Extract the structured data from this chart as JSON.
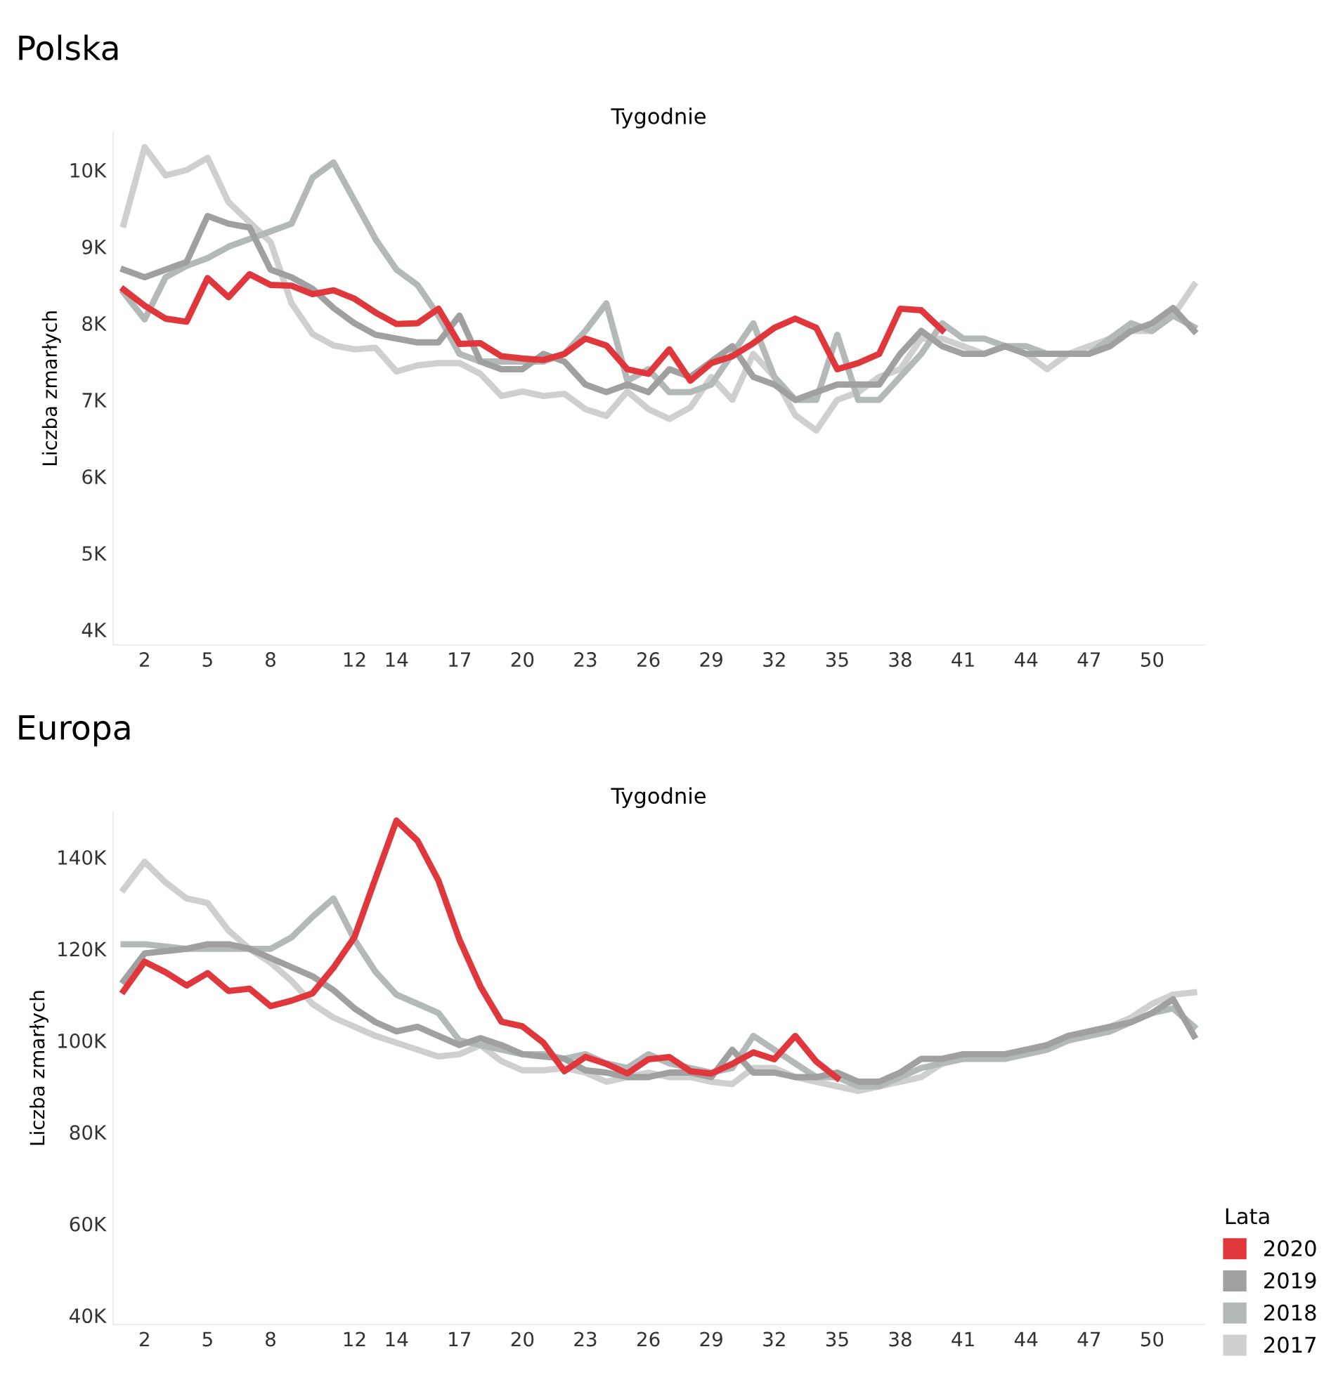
{
  "chart_data": [
    {
      "type": "line",
      "title": "Polska",
      "xlabel": "Tygodnie",
      "ylabel": "Liczba zmarłych",
      "x": [
        1,
        2,
        3,
        4,
        5,
        6,
        7,
        8,
        9,
        10,
        11,
        12,
        13,
        14,
        15,
        16,
        17,
        18,
        19,
        20,
        21,
        22,
        23,
        24,
        25,
        26,
        27,
        28,
        29,
        30,
        31,
        32,
        33,
        34,
        35,
        36,
        37,
        38,
        39,
        40,
        41,
        42,
        43,
        44,
        45,
        46,
        47,
        48,
        49,
        50,
        51,
        52
      ],
      "xlim": [
        0.5,
        52.5
      ],
      "xticks": [
        2,
        5,
        8,
        12,
        14,
        17,
        20,
        23,
        26,
        29,
        32,
        35,
        38,
        41,
        44,
        47,
        50
      ],
      "ylim": [
        3800,
        10500
      ],
      "yticks": [
        {
          "value": 4000,
          "label": "4K"
        },
        {
          "value": 5000,
          "label": "5K"
        },
        {
          "value": 6000,
          "label": "6K"
        },
        {
          "value": 7000,
          "label": "7K"
        },
        {
          "value": 8000,
          "label": "8K"
        },
        {
          "value": 9000,
          "label": "9K"
        },
        {
          "value": 10000,
          "label": "10K"
        }
      ],
      "grid": false,
      "legend": false,
      "series": [
        {
          "color": "#e0373c",
          "values": [
            8440,
            8230,
            8060,
            8020,
            8590,
            8340,
            8640,
            8500,
            8490,
            8380,
            8430,
            8320,
            8140,
            7990,
            8000,
            8190,
            7730,
            7740,
            7570,
            7540,
            7520,
            7600,
            7800,
            7710,
            7400,
            7340,
            7660,
            7250,
            7480,
            7570,
            7740,
            7940,
            8060,
            7940,
            7400,
            7480,
            7600,
            8190,
            8170,
            7910,
            null,
            null,
            null,
            null,
            null,
            null,
            null,
            null,
            null,
            null,
            null,
            null
          ]
        },
        {
          "color": "#a0a0a0",
          "values": [
            8700,
            8600,
            8700,
            8800,
            9400,
            9300,
            9250,
            8700,
            8600,
            8450,
            8200,
            8000,
            7850,
            7800,
            7750,
            7750,
            8100,
            7500,
            7400,
            7400,
            7600,
            7500,
            7200,
            7100,
            7200,
            7100,
            7400,
            7300,
            7500,
            7700,
            7300,
            7200,
            7000,
            7100,
            7200,
            7200,
            7200,
            7600,
            7900,
            7700,
            7600,
            7600,
            7700,
            7600,
            7600,
            7600,
            7600,
            7700,
            7900,
            8000,
            8200,
            7900
          ]
        },
        {
          "color": "#b3b9b8",
          "values": [
            8400,
            8050,
            8600,
            8750,
            8850,
            9000,
            9100,
            9200,
            9300,
            9900,
            10100,
            9600,
            9100,
            8700,
            8500,
            8100,
            7600,
            7500,
            7500,
            7500,
            7500,
            7600,
            7900,
            8260,
            7250,
            7400,
            7100,
            7100,
            7200,
            7600,
            8000,
            7300,
            7000,
            7000,
            7850,
            7000,
            7000,
            7300,
            7600,
            8000,
            7800,
            7800,
            7700,
            7700,
            7600,
            7600,
            7600,
            7800,
            8000,
            7900,
            8100,
            7950
          ]
        },
        {
          "color": "#cfcfcf",
          "values": [
            9290,
            10300,
            9930,
            10000,
            10160,
            9580,
            9320,
            9060,
            8260,
            7860,
            7710,
            7660,
            7680,
            7370,
            7450,
            7480,
            7480,
            7340,
            7050,
            7110,
            7050,
            7080,
            6880,
            6790,
            7110,
            6880,
            6750,
            6900,
            7300,
            7000,
            7600,
            7300,
            6800,
            6600,
            7000,
            7100,
            7300,
            7400,
            7800,
            7800,
            7700,
            7600,
            7700,
            7600,
            7400,
            7600,
            7700,
            7800,
            7900,
            7900,
            8100,
            8500
          ]
        }
      ]
    },
    {
      "type": "line",
      "title": "Europa",
      "xlabel": "Tygodnie",
      "ylabel": "Liczba zmarłych",
      "legend_title": "Lata",
      "x": [
        1,
        2,
        3,
        4,
        5,
        6,
        7,
        8,
        9,
        10,
        11,
        12,
        13,
        14,
        15,
        16,
        17,
        18,
        19,
        20,
        21,
        22,
        23,
        24,
        25,
        26,
        27,
        28,
        29,
        30,
        31,
        32,
        33,
        34,
        35,
        36,
        37,
        38,
        39,
        40,
        41,
        42,
        43,
        44,
        45,
        46,
        47,
        48,
        49,
        50,
        51,
        52
      ],
      "xlim": [
        0.5,
        52.5
      ],
      "xticks": [
        2,
        5,
        8,
        12,
        14,
        17,
        20,
        23,
        26,
        29,
        32,
        35,
        38,
        41,
        44,
        47,
        50
      ],
      "ylim": [
        38000,
        150000
      ],
      "yticks": [
        {
          "value": 40000,
          "label": "40K"
        },
        {
          "value": 60000,
          "label": "60K"
        },
        {
          "value": 80000,
          "label": "80K"
        },
        {
          "value": 100000,
          "label": "100K"
        },
        {
          "value": 120000,
          "label": "120K"
        },
        {
          "value": 140000,
          "label": "140K"
        }
      ],
      "grid": false,
      "legend": "bottom right",
      "series": [
        {
          "name": "2020",
          "color": "#e0373c",
          "values": [
            110800,
            117200,
            114900,
            112000,
            114700,
            110800,
            111300,
            107500,
            108700,
            110300,
            115900,
            122600,
            135400,
            148000,
            143600,
            134900,
            122000,
            111800,
            104100,
            103100,
            99500,
            93300,
            96400,
            94900,
            92800,
            95900,
            96400,
            93300,
            92800,
            94900,
            97400,
            95900,
            101000,
            95400,
            91800,
            null,
            null,
            null,
            null,
            null,
            null,
            null,
            null,
            null,
            null,
            null,
            null,
            null,
            null,
            null,
            null,
            null
          ]
        },
        {
          "name": "2019",
          "color": "#a0a0a0",
          "values": [
            113000,
            119000,
            119500,
            120000,
            121000,
            121000,
            120000,
            118000,
            116000,
            114000,
            111000,
            107000,
            104000,
            102000,
            103000,
            101000,
            99000,
            100500,
            99000,
            97000,
            96500,
            96000,
            93500,
            93000,
            92000,
            92000,
            93000,
            93000,
            92000,
            98000,
            93000,
            93000,
            92000,
            92000,
            93000,
            91000,
            91000,
            93000,
            96000,
            96000,
            97000,
            97000,
            97000,
            98000,
            99000,
            101000,
            102000,
            103000,
            104000,
            106000,
            109000,
            101000
          ]
        },
        {
          "name": "2018",
          "color": "#b3b9b8",
          "values": [
            121000,
            121000,
            120500,
            120000,
            120000,
            120000,
            120000,
            120000,
            122500,
            127000,
            131000,
            122000,
            115000,
            110000,
            108000,
            106000,
            100000,
            99000,
            98000,
            97000,
            97000,
            96000,
            97000,
            95000,
            94000,
            97000,
            95000,
            94000,
            93000,
            94000,
            101000,
            98000,
            95000,
            92000,
            92000,
            90000,
            90000,
            92000,
            94000,
            95000,
            96000,
            96000,
            96000,
            97000,
            98000,
            100000,
            101000,
            102000,
            104000,
            106000,
            107000,
            103000
          ]
        },
        {
          "name": "2017",
          "color": "#cfcfcf",
          "values": [
            133000,
            139000,
            134500,
            131000,
            130000,
            124000,
            120000,
            117000,
            113000,
            108000,
            105000,
            103000,
            101000,
            99500,
            98000,
            96500,
            97000,
            99000,
            95500,
            93500,
            93500,
            94000,
            93000,
            91000,
            92000,
            93000,
            92000,
            92000,
            91000,
            90500,
            94000,
            94000,
            92000,
            91000,
            90000,
            89000,
            90000,
            91000,
            92000,
            95000,
            96000,
            97000,
            97000,
            97000,
            99000,
            101000,
            102000,
            103000,
            105000,
            108000,
            110000,
            110500
          ]
        }
      ]
    }
  ]
}
